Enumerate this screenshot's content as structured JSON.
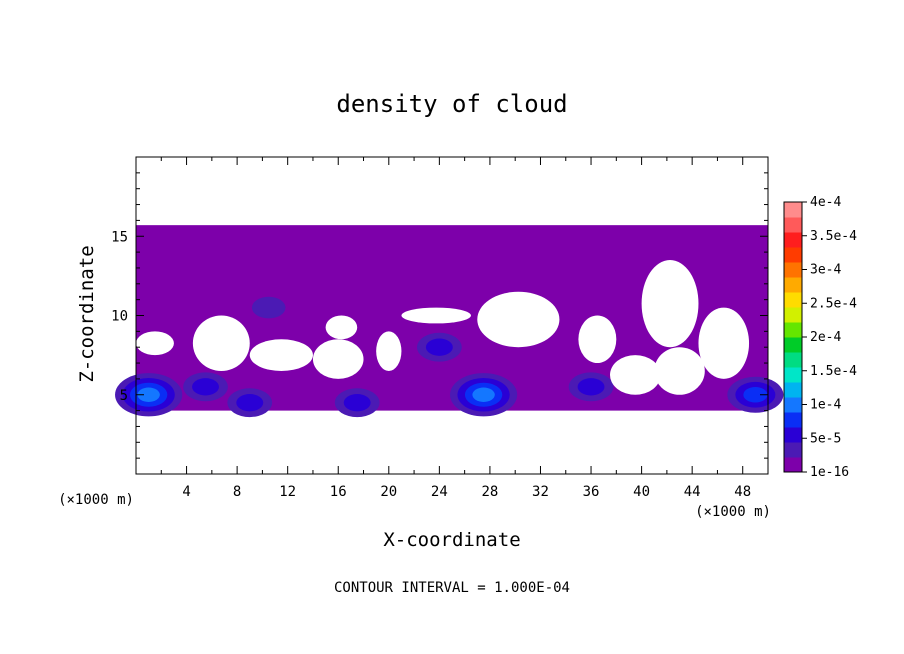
{
  "chart_data": {
    "type": "heatmap",
    "title": "density of cloud",
    "xlabel": "X-coordinate",
    "ylabel": "Z-coordinate",
    "x_unit_left": "(×1000 m)",
    "x_unit_right": "(×1000 m)",
    "xlim": [
      0,
      50
    ],
    "ylim": [
      0,
      20
    ],
    "x_ticks": [
      4,
      8,
      12,
      16,
      20,
      24,
      28,
      32,
      36,
      40,
      44,
      48
    ],
    "y_ticks": [
      5,
      10,
      15
    ],
    "footer": "CONTOUR INTERVAL = 1.000E-04",
    "colorbar": {
      "labels": [
        "1e-16",
        "5e-5",
        "1e-4",
        "1.5e-4",
        "2e-4",
        "2.5e-4",
        "3e-4",
        "3.5e-4",
        "4e-4"
      ],
      "colors": [
        "#7d00aa",
        "#4b1ab4",
        "#2a00d5",
        "#0a2ef5",
        "#1477ff",
        "#00b4f0",
        "#00e6c8",
        "#00dc82",
        "#00cc28",
        "#64e600",
        "#d2f000",
        "#ffdc00",
        "#ffaa00",
        "#ff7300",
        "#ff3c00",
        "#ff1e1e",
        "#ff5a5a",
        "#ff8c8c"
      ]
    },
    "cloud_top_z": 15.7,
    "cloud_base_z": 4.0,
    "clear_regions": [
      {
        "x": [
          0.0,
          3.0
        ],
        "z": [
          7.5,
          9.0
        ]
      },
      {
        "x": [
          4.5,
          9.0
        ],
        "z": [
          6.5,
          10.0
        ]
      },
      {
        "x": [
          9.0,
          14.0
        ],
        "z": [
          6.5,
          8.5
        ]
      },
      {
        "x": [
          14.0,
          18.0
        ],
        "z": [
          6.0,
          8.5
        ]
      },
      {
        "x": [
          15.0,
          17.5
        ],
        "z": [
          8.5,
          10.0
        ]
      },
      {
        "x": [
          19.0,
          21.0
        ],
        "z": [
          6.5,
          9.0
        ]
      },
      {
        "x": [
          21.0,
          26.5
        ],
        "z": [
          9.5,
          10.5
        ]
      },
      {
        "x": [
          27.0,
          33.5
        ],
        "z": [
          8.0,
          11.5
        ]
      },
      {
        "x": [
          35.0,
          38.0
        ],
        "z": [
          7.0,
          10.0
        ]
      },
      {
        "x": [
          37.5,
          41.5
        ],
        "z": [
          5.0,
          7.5
        ]
      },
      {
        "x": [
          40.0,
          44.5
        ],
        "z": [
          8.0,
          13.5
        ]
      },
      {
        "x": [
          41.0,
          45.0
        ],
        "z": [
          5.0,
          8.0
        ]
      },
      {
        "x": [
          44.5,
          48.5
        ],
        "z": [
          6.0,
          10.5
        ]
      }
    ],
    "dense_cores": [
      {
        "x": 10.5,
        "z": 10.5,
        "level": 1
      },
      {
        "x": 24.0,
        "z": 8.0,
        "level": 2
      },
      {
        "x": 27.5,
        "z": 5.0,
        "level": 4
      },
      {
        "x": 1.0,
        "z": 5.0,
        "level": 4
      },
      {
        "x": 5.5,
        "z": 5.5,
        "level": 2
      },
      {
        "x": 9.0,
        "z": 4.5,
        "level": 2
      },
      {
        "x": 17.5,
        "z": 4.5,
        "level": 2
      },
      {
        "x": 36.0,
        "z": 5.5,
        "level": 2
      },
      {
        "x": 49.0,
        "z": 5.0,
        "level": 3
      }
    ]
  }
}
